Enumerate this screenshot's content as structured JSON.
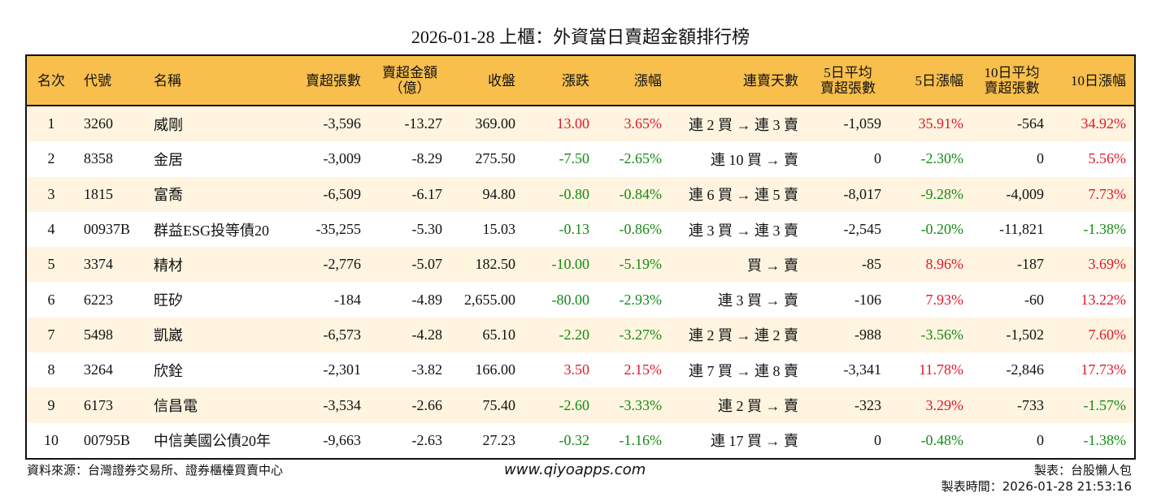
{
  "title": "2026-01-28 上櫃：外資當日賣超金額排行榜",
  "colors": {
    "header": "#F8BF4C",
    "row_alt": "#FEF4DF",
    "up": "#E0182D",
    "down": "#168A16"
  },
  "columns": [
    "名次",
    "代號",
    "名稱",
    "賣超張數",
    "賣超金額\n（億）",
    "收盤",
    "漲跌",
    "漲幅",
    "連賣天數",
    "5日平均\n賣超張數",
    "5日漲幅",
    "10日平均\n賣超張數",
    "10日漲幅"
  ],
  "rows": [
    [
      "1",
      "3260",
      "威剛",
      "-3,596",
      "-13.27",
      "369.00",
      "13.00",
      "3.65%",
      "連 2 買 → 連 3 賣",
      "-1,059",
      "35.91%",
      "-564",
      "34.92%"
    ],
    [
      "2",
      "8358",
      "金居",
      "-3,009",
      "-8.29",
      "275.50",
      "-7.50",
      "-2.65%",
      "連 10 買 → 賣",
      "0",
      "-2.30%",
      "0",
      "5.56%"
    ],
    [
      "3",
      "1815",
      "富喬",
      "-6,509",
      "-6.17",
      "94.80",
      "-0.80",
      "-0.84%",
      "連 6 買 → 連 5 賣",
      "-8,017",
      "-9.28%",
      "-4,009",
      "7.73%"
    ],
    [
      "4",
      "00937B",
      "群益ESG投等債20",
      "-35,255",
      "-5.30",
      "15.03",
      "-0.13",
      "-0.86%",
      "連 3 買 → 連 3 賣",
      "-2,545",
      "-0.20%",
      "-11,821",
      "-1.38%"
    ],
    [
      "5",
      "3374",
      "精材",
      "-2,776",
      "-5.07",
      "182.50",
      "-10.00",
      "-5.19%",
      "買 → 賣",
      "-85",
      "8.96%",
      "-187",
      "3.69%"
    ],
    [
      "6",
      "6223",
      "旺矽",
      "-184",
      "-4.89",
      "2,655.00",
      "-80.00",
      "-2.93%",
      "連 3 買 → 賣",
      "-106",
      "7.93%",
      "-60",
      "13.22%"
    ],
    [
      "7",
      "5498",
      "凱崴",
      "-6,573",
      "-4.28",
      "65.10",
      "-2.20",
      "-3.27%",
      "連 2 買 → 連 2 賣",
      "-988",
      "-3.56%",
      "-1,502",
      "7.60%"
    ],
    [
      "8",
      "3264",
      "欣銓",
      "-2,301",
      "-3.82",
      "166.00",
      "3.50",
      "2.15%",
      "連 7 買 → 連 8 賣",
      "-3,341",
      "11.78%",
      "-2,846",
      "17.73%"
    ],
    [
      "9",
      "6173",
      "信昌電",
      "-3,534",
      "-2.66",
      "75.40",
      "-2.60",
      "-3.33%",
      "連 2 買 → 賣",
      "-323",
      "3.29%",
      "-733",
      "-1.57%"
    ],
    [
      "10",
      "00795B",
      "中信美國公債20年",
      "-9,663",
      "-2.63",
      "27.23",
      "-0.32",
      "-1.16%",
      "連 17 買 → 賣",
      "0",
      "-0.48%",
      "0",
      "-1.38%"
    ]
  ],
  "footer": {
    "source": "資料來源：台灣證券交易所、證券櫃檯買賣中心",
    "url": "www.qiyoapps.com",
    "maker": "製表：台股懶人包",
    "time": "製表時間：2026-01-28 21:53:16"
  }
}
